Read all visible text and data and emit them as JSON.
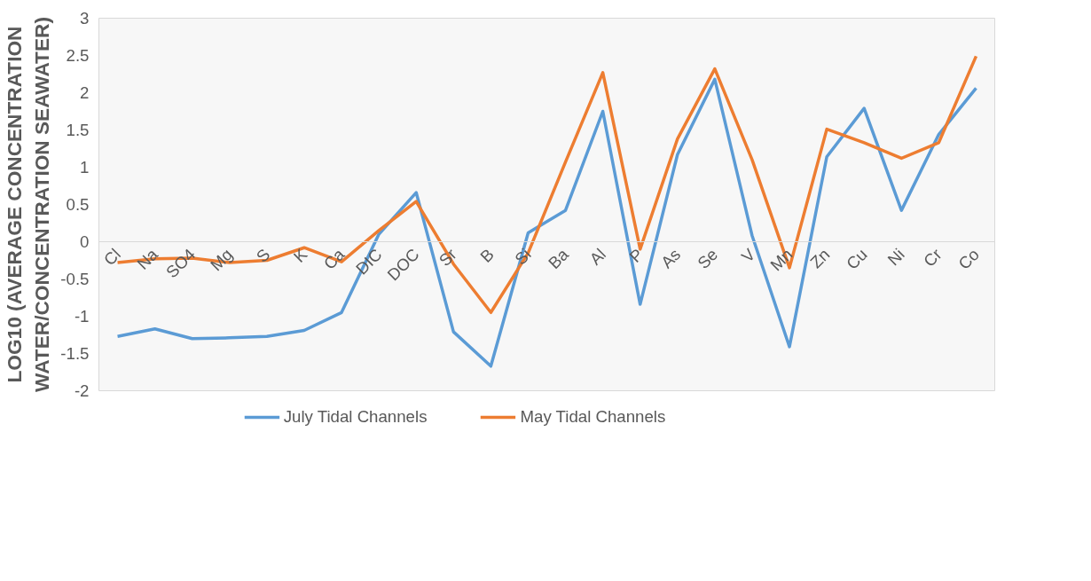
{
  "chart_data": {
    "type": "line",
    "ylabel": "LOG10 (AVERAGE CONCENTRATION\nWATER/CONCENTRATION SEAWATER)",
    "categories": [
      "Cl",
      "Na",
      "SO4",
      "Mg",
      "S",
      "K",
      "Ca",
      "DIC",
      "DOC",
      "Sr",
      "B",
      "Si",
      "Ba",
      "Al",
      "P",
      "As",
      "Se",
      "V",
      "Mn",
      "Zn",
      "Cu",
      "Ni",
      "Cr",
      "Co"
    ],
    "series": [
      {
        "name": "July Tidal Channels",
        "color": "#5b9bd5",
        "values": [
          -1.27,
          -1.17,
          -1.3,
          -1.29,
          -1.27,
          -1.19,
          -0.95,
          0.1,
          0.66,
          -1.21,
          -1.67,
          0.12,
          0.42,
          1.75,
          -0.84,
          1.17,
          2.18,
          0.08,
          -1.41,
          1.14,
          1.79,
          0.42,
          1.44,
          2.06
        ]
      },
      {
        "name": "May Tidal Channels",
        "color": "#ed7d31",
        "values": [
          -0.28,
          -0.23,
          -0.22,
          -0.28,
          -0.25,
          -0.08,
          -0.27,
          0.15,
          0.54,
          -0.3,
          -0.95,
          -0.15,
          1.07,
          2.27,
          -0.1,
          1.38,
          2.32,
          1.1,
          -0.35,
          1.51,
          1.33,
          1.12,
          1.33,
          2.49
        ]
      }
    ],
    "ylim": [
      -2,
      3
    ],
    "yticks": [
      -2,
      -1.5,
      -1,
      -0.5,
      0,
      0.5,
      1,
      1.5,
      2,
      2.5,
      3
    ],
    "grid": false,
    "legend": "bottom",
    "line_style": "solid",
    "marker": "none"
  }
}
